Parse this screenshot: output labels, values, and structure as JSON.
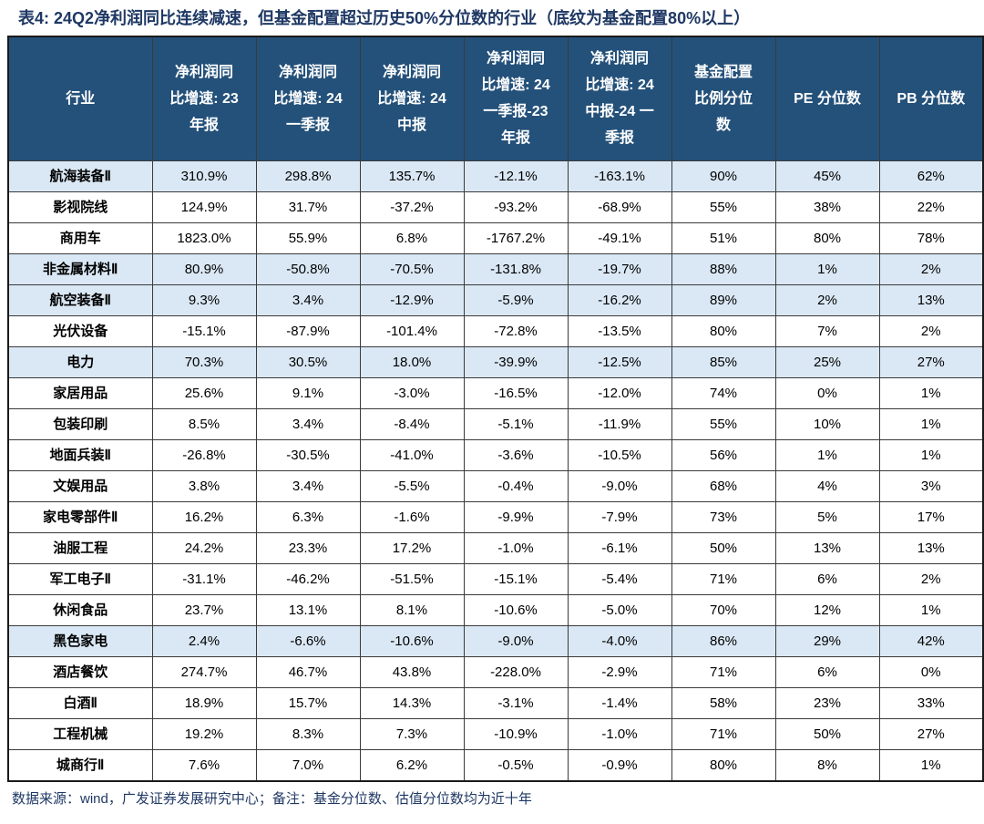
{
  "title": "表4:  24Q2净利润同比连续减速，但基金配置超过历史50%分位数的行业（底纹为基金配置80%以上）",
  "footer": "数据来源：wind，广发证券发展研究中心；备注：基金分位数、估值分位数均为近十年",
  "colors": {
    "header_bg": "#24517A",
    "header_text": "#FFFFFF",
    "highlight_bg": "#DAE8F5",
    "title_text": "#1F3864",
    "border_color": "#3A3A3A"
  },
  "table": {
    "highlight_rule": "底纹为基金配置80%以上",
    "columns": [
      "行业",
      "净利润同\n比增速: 23\n年报",
      "净利润同\n比增速: 24\n一季报",
      "净利润同\n比增速: 24\n中报",
      "净利润同\n比增速: 24\n一季报-23\n年报",
      "净利润同\n比增速: 24\n中报-24 一\n季报",
      "基金配置\n比例分位\n数",
      "PE 分位数",
      "PB 分位数"
    ],
    "rows": [
      {
        "industry": "航海装备Ⅱ",
        "values": [
          "310.9%",
          "298.8%",
          "135.7%",
          "-12.1%",
          "-163.1%",
          "90%",
          "45%",
          "62%"
        ],
        "highlight": true
      },
      {
        "industry": "影视院线",
        "values": [
          "124.9%",
          "31.7%",
          "-37.2%",
          "-93.2%",
          "-68.9%",
          "55%",
          "38%",
          "22%"
        ],
        "highlight": false
      },
      {
        "industry": "商用车",
        "values": [
          "1823.0%",
          "55.9%",
          "6.8%",
          "-1767.2%",
          "-49.1%",
          "51%",
          "80%",
          "78%"
        ],
        "highlight": false
      },
      {
        "industry": "非金属材料Ⅱ",
        "values": [
          "80.9%",
          "-50.8%",
          "-70.5%",
          "-131.8%",
          "-19.7%",
          "88%",
          "1%",
          "2%"
        ],
        "highlight": true
      },
      {
        "industry": "航空装备Ⅱ",
        "values": [
          "9.3%",
          "3.4%",
          "-12.9%",
          "-5.9%",
          "-16.2%",
          "89%",
          "2%",
          "13%"
        ],
        "highlight": true
      },
      {
        "industry": "光伏设备",
        "values": [
          "-15.1%",
          "-87.9%",
          "-101.4%",
          "-72.8%",
          "-13.5%",
          "80%",
          "7%",
          "2%"
        ],
        "highlight": false
      },
      {
        "industry": "电力",
        "values": [
          "70.3%",
          "30.5%",
          "18.0%",
          "-39.9%",
          "-12.5%",
          "85%",
          "25%",
          "27%"
        ],
        "highlight": true
      },
      {
        "industry": "家居用品",
        "values": [
          "25.6%",
          "9.1%",
          "-3.0%",
          "-16.5%",
          "-12.0%",
          "74%",
          "0%",
          "1%"
        ],
        "highlight": false
      },
      {
        "industry": "包装印刷",
        "values": [
          "8.5%",
          "3.4%",
          "-8.4%",
          "-5.1%",
          "-11.9%",
          "55%",
          "10%",
          "1%"
        ],
        "highlight": false
      },
      {
        "industry": "地面兵装Ⅱ",
        "values": [
          "-26.8%",
          "-30.5%",
          "-41.0%",
          "-3.6%",
          "-10.5%",
          "56%",
          "1%",
          "1%"
        ],
        "highlight": false
      },
      {
        "industry": "文娱用品",
        "values": [
          "3.8%",
          "3.4%",
          "-5.5%",
          "-0.4%",
          "-9.0%",
          "68%",
          "4%",
          "3%"
        ],
        "highlight": false
      },
      {
        "industry": "家电零部件Ⅱ",
        "values": [
          "16.2%",
          "6.3%",
          "-1.6%",
          "-9.9%",
          "-7.9%",
          "73%",
          "5%",
          "17%"
        ],
        "highlight": false
      },
      {
        "industry": "油服工程",
        "values": [
          "24.2%",
          "23.3%",
          "17.2%",
          "-1.0%",
          "-6.1%",
          "50%",
          "13%",
          "13%"
        ],
        "highlight": false
      },
      {
        "industry": "军工电子Ⅱ",
        "values": [
          "-31.1%",
          "-46.2%",
          "-51.5%",
          "-15.1%",
          "-5.4%",
          "71%",
          "6%",
          "2%"
        ],
        "highlight": false
      },
      {
        "industry": "休闲食品",
        "values": [
          "23.7%",
          "13.1%",
          "8.1%",
          "-10.6%",
          "-5.0%",
          "70%",
          "12%",
          "1%"
        ],
        "highlight": false
      },
      {
        "industry": "黑色家电",
        "values": [
          "2.4%",
          "-6.6%",
          "-10.6%",
          "-9.0%",
          "-4.0%",
          "86%",
          "29%",
          "42%"
        ],
        "highlight": true
      },
      {
        "industry": "酒店餐饮",
        "values": [
          "274.7%",
          "46.7%",
          "43.8%",
          "-228.0%",
          "-2.9%",
          "71%",
          "6%",
          "0%"
        ],
        "highlight": false
      },
      {
        "industry": "白酒Ⅱ",
        "values": [
          "18.9%",
          "15.7%",
          "14.3%",
          "-3.1%",
          "-1.4%",
          "58%",
          "23%",
          "33%"
        ],
        "highlight": false
      },
      {
        "industry": "工程机械",
        "values": [
          "19.2%",
          "8.3%",
          "7.3%",
          "-10.9%",
          "-1.0%",
          "71%",
          "50%",
          "27%"
        ],
        "highlight": false
      },
      {
        "industry": "城商行Ⅱ",
        "values": [
          "7.6%",
          "7.0%",
          "6.2%",
          "-0.5%",
          "-0.9%",
          "80%",
          "8%",
          "1%"
        ],
        "highlight": false
      }
    ]
  }
}
